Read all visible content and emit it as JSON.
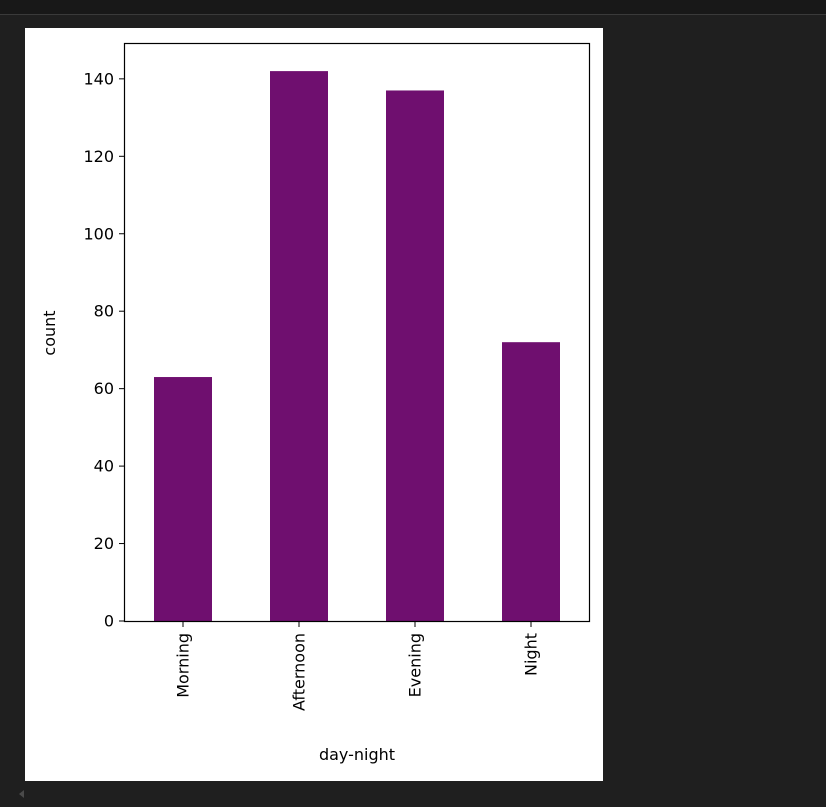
{
  "colors": {
    "background": "#1f1f1f",
    "panel": "#ffffff",
    "bar": "#6f0f6f"
  },
  "chart_data": {
    "type": "bar",
    "title": "",
    "categories": [
      "Morning",
      "Afternoon",
      "Evening",
      "Night"
    ],
    "values": [
      63,
      142,
      137,
      72
    ],
    "xlabel": "day-night",
    "ylabel": "count",
    "ylim": [
      0,
      149
    ],
    "yticks": [
      0,
      20,
      40,
      60,
      80,
      100,
      120,
      140
    ],
    "grid": false,
    "legend": null
  }
}
